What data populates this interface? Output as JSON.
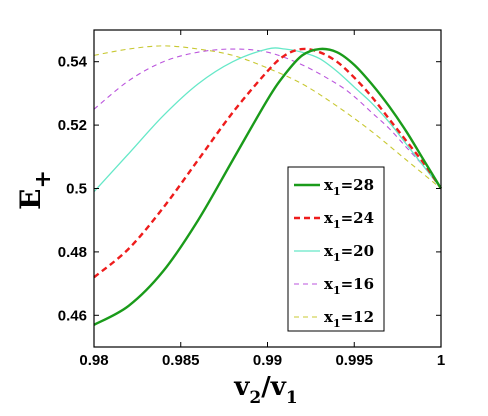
{
  "chart_data": {
    "type": "line",
    "xlabel": {
      "main": "v",
      "sub1": "2",
      "slash": "/v",
      "sub2": "1"
    },
    "ylabel": {
      "main": "E",
      "sub": "+"
    },
    "xlim": [
      0.98,
      1.0
    ],
    "ylim": [
      0.45,
      0.55
    ],
    "xticks": [
      {
        "value": 0.98,
        "label": "0.98"
      },
      {
        "value": 0.985,
        "label": "0.985"
      },
      {
        "value": 0.99,
        "label": "0.99"
      },
      {
        "value": 0.995,
        "label": "0.995"
      },
      {
        "value": 1.0,
        "label": "1"
      }
    ],
    "yticks": [
      {
        "value": 0.46,
        "label": "0.46"
      },
      {
        "value": 0.48,
        "label": "0.48"
      },
      {
        "value": 0.5,
        "label": "0.5"
      },
      {
        "value": 0.52,
        "label": "0.52"
      },
      {
        "value": 0.54,
        "label": "0.54"
      }
    ],
    "grid": false,
    "legend_position": "bottom-right",
    "series": [
      {
        "name": {
          "main": "x",
          "sub": "1",
          "suffix": "=28"
        },
        "color": "#1a9b1a",
        "dash": "solid",
        "x": [
          0.98,
          0.982,
          0.984,
          0.986,
          0.988,
          0.99,
          0.991,
          0.992,
          0.993,
          0.994,
          0.995,
          0.996,
          0.997,
          0.998,
          0.999,
          1.0
        ],
        "y": [
          0.457,
          0.463,
          0.474,
          0.49,
          0.509,
          0.528,
          0.536,
          0.542,
          0.544,
          0.543,
          0.539,
          0.533,
          0.526,
          0.518,
          0.509,
          0.5
        ]
      },
      {
        "name": {
          "main": "x",
          "sub": "1",
          "suffix": "=24"
        },
        "color": "#ee1c1c",
        "dash": "dashed",
        "x": [
          0.98,
          0.982,
          0.984,
          0.986,
          0.988,
          0.99,
          0.991,
          0.992,
          0.993,
          0.994,
          0.995,
          0.996,
          0.997,
          0.998,
          0.999,
          1.0
        ],
        "y": [
          0.472,
          0.481,
          0.494,
          0.509,
          0.524,
          0.537,
          0.542,
          0.544,
          0.543,
          0.54,
          0.535,
          0.529,
          0.522,
          0.515,
          0.508,
          0.5
        ]
      },
      {
        "name": {
          "main": "x",
          "sub": "1",
          "suffix": "=20"
        },
        "color": "#66e8c8",
        "dash": "solid-thin",
        "x": [
          0.98,
          0.982,
          0.984,
          0.986,
          0.988,
          0.99,
          0.991,
          0.992,
          0.993,
          0.994,
          0.995,
          0.996,
          0.997,
          0.998,
          0.999,
          1.0
        ],
        "y": [
          0.499,
          0.511,
          0.523,
          0.533,
          0.54,
          0.544,
          0.544,
          0.543,
          0.541,
          0.537,
          0.532,
          0.527,
          0.521,
          0.514,
          0.507,
          0.5
        ]
      },
      {
        "name": {
          "main": "x",
          "sub": "1",
          "suffix": "=16"
        },
        "color": "#bb55dd",
        "dash": "dashed-thin",
        "x": [
          0.98,
          0.982,
          0.984,
          0.986,
          0.988,
          0.99,
          0.992,
          0.994,
          0.995,
          0.996,
          0.997,
          0.998,
          0.999,
          1.0
        ],
        "y": [
          0.525,
          0.534,
          0.54,
          0.543,
          0.544,
          0.543,
          0.539,
          0.533,
          0.529,
          0.524,
          0.519,
          0.513,
          0.507,
          0.5
        ]
      },
      {
        "name": {
          "main": "x",
          "sub": "1",
          "suffix": "=12"
        },
        "color": "#c8c832",
        "dash": "dashed-thin",
        "x": [
          0.98,
          0.982,
          0.984,
          0.986,
          0.988,
          0.99,
          0.992,
          0.994,
          0.996,
          0.998,
          1.0
        ],
        "y": [
          0.542,
          0.544,
          0.545,
          0.544,
          0.542,
          0.538,
          0.533,
          0.526,
          0.518,
          0.509,
          0.5
        ]
      }
    ]
  }
}
